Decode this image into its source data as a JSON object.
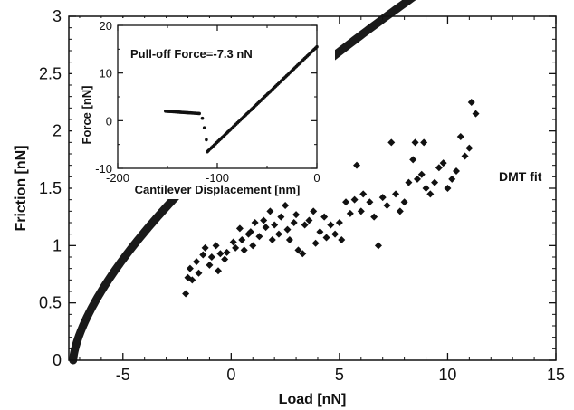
{
  "chart_data": [
    {
      "type": "scatter",
      "xlabel": "Load [nN]",
      "ylabel": "Friction [nN]",
      "xlim": [
        -7.5,
        15
      ],
      "ylim": [
        0,
        3
      ],
      "x_ticks": [
        -5,
        0,
        5,
        10,
        15
      ],
      "x_tick_labels": [
        "-5",
        "0",
        "5",
        "10",
        "15"
      ],
      "y_ticks": [
        0,
        0.5,
        1,
        1.5,
        2,
        2.5,
        3
      ],
      "y_tick_labels": [
        "0",
        "0.5",
        "1",
        "1.5",
        "2",
        "2.5",
        "3"
      ],
      "annotation": "DMT fit",
      "series": [
        {
          "marker": "diamond",
          "points": [
            [
              -2.1,
              0.58
            ],
            [
              -2.0,
              0.72
            ],
            [
              -1.9,
              0.8
            ],
            [
              -1.8,
              0.7
            ],
            [
              -1.6,
              0.86
            ],
            [
              -1.5,
              0.76
            ],
            [
              -1.3,
              0.92
            ],
            [
              -1.2,
              0.98
            ],
            [
              -1.0,
              0.83
            ],
            [
              -0.9,
              0.9
            ],
            [
              -0.7,
              1.0
            ],
            [
              -0.6,
              0.78
            ],
            [
              -0.5,
              0.93
            ],
            [
              -0.3,
              0.88
            ],
            [
              -0.2,
              0.94
            ],
            [
              0.1,
              1.03
            ],
            [
              0.2,
              0.98
            ],
            [
              0.4,
              1.15
            ],
            [
              0.5,
              1.05
            ],
            [
              0.6,
              0.96
            ],
            [
              0.8,
              1.1
            ],
            [
              0.9,
              1.12
            ],
            [
              1.0,
              1.0
            ],
            [
              1.1,
              1.2
            ],
            [
              1.3,
              1.08
            ],
            [
              1.5,
              1.22
            ],
            [
              1.6,
              1.16
            ],
            [
              1.8,
              1.3
            ],
            [
              1.9,
              1.05
            ],
            [
              2.0,
              1.18
            ],
            [
              2.2,
              1.1
            ],
            [
              2.3,
              1.25
            ],
            [
              2.5,
              1.35
            ],
            [
              2.6,
              1.14
            ],
            [
              2.7,
              1.05
            ],
            [
              2.9,
              1.2
            ],
            [
              3.0,
              1.27
            ],
            [
              3.1,
              0.96
            ],
            [
              3.3,
              0.93
            ],
            [
              3.4,
              1.18
            ],
            [
              3.6,
              1.22
            ],
            [
              3.8,
              1.3
            ],
            [
              3.9,
              1.02
            ],
            [
              4.1,
              1.12
            ],
            [
              4.3,
              1.25
            ],
            [
              4.4,
              1.07
            ],
            [
              4.6,
              1.18
            ],
            [
              4.8,
              1.1
            ],
            [
              5.0,
              1.2
            ],
            [
              5.1,
              1.05
            ],
            [
              5.3,
              1.38
            ],
            [
              5.5,
              1.28
            ],
            [
              5.7,
              1.4
            ],
            [
              5.8,
              1.7
            ],
            [
              6.0,
              1.3
            ],
            [
              6.1,
              1.45
            ],
            [
              6.4,
              1.38
            ],
            [
              6.6,
              1.25
            ],
            [
              6.8,
              1.0
            ],
            [
              7.0,
              1.42
            ],
            [
              7.2,
              1.35
            ],
            [
              7.4,
              1.9
            ],
            [
              7.6,
              1.45
            ],
            [
              7.8,
              1.3
            ],
            [
              8.0,
              1.38
            ],
            [
              8.2,
              1.55
            ],
            [
              8.4,
              1.75
            ],
            [
              8.5,
              1.9
            ],
            [
              8.6,
              1.58
            ],
            [
              8.8,
              1.62
            ],
            [
              8.9,
              1.9
            ],
            [
              9.0,
              1.5
            ],
            [
              9.2,
              1.45
            ],
            [
              9.4,
              1.55
            ],
            [
              9.6,
              1.68
            ],
            [
              9.8,
              1.72
            ],
            [
              10.0,
              1.5
            ],
            [
              10.2,
              1.58
            ],
            [
              10.4,
              1.65
            ],
            [
              10.6,
              1.95
            ],
            [
              10.8,
              1.78
            ],
            [
              11.0,
              1.85
            ],
            [
              11.1,
              2.25
            ],
            [
              11.3,
              2.15
            ]
          ]
        },
        {
          "type": "line",
          "model": "DMT",
          "parameters": {
            "F0": 7.3,
            "k": 0.505,
            "exponent": 0.6667
          },
          "x_range": [
            -7.3,
            15
          ]
        }
      ]
    },
    {
      "type": "scatter",
      "title": "Pull-off Force=-7.3 nN",
      "xlabel": "Cantilever Displacement [nm]",
      "ylabel": "Force [nN]",
      "xlim": [
        -200,
        0
      ],
      "ylim": [
        -10,
        20
      ],
      "x_ticks": [
        -200,
        -100,
        0
      ],
      "x_tick_labels": [
        "-200",
        "-100",
        "0"
      ],
      "y_ticks": [
        -10,
        0,
        10,
        20
      ],
      "y_tick_labels": [
        "-10",
        "0",
        "10",
        "20"
      ],
      "series": [
        {
          "segment": "flat",
          "x": [
            -152,
            -118
          ],
          "y": [
            2.0,
            1.5
          ]
        },
        {
          "segment": "snap",
          "points": [
            [
              -115,
              0.5
            ],
            [
              -113,
              -1.5
            ],
            [
              -111,
              -4.0
            ],
            [
              -110,
              -6.5
            ]
          ]
        },
        {
          "segment": "linear",
          "x": [
            -110,
            0
          ],
          "y": [
            -6.5,
            15.5
          ]
        }
      ]
    }
  ]
}
